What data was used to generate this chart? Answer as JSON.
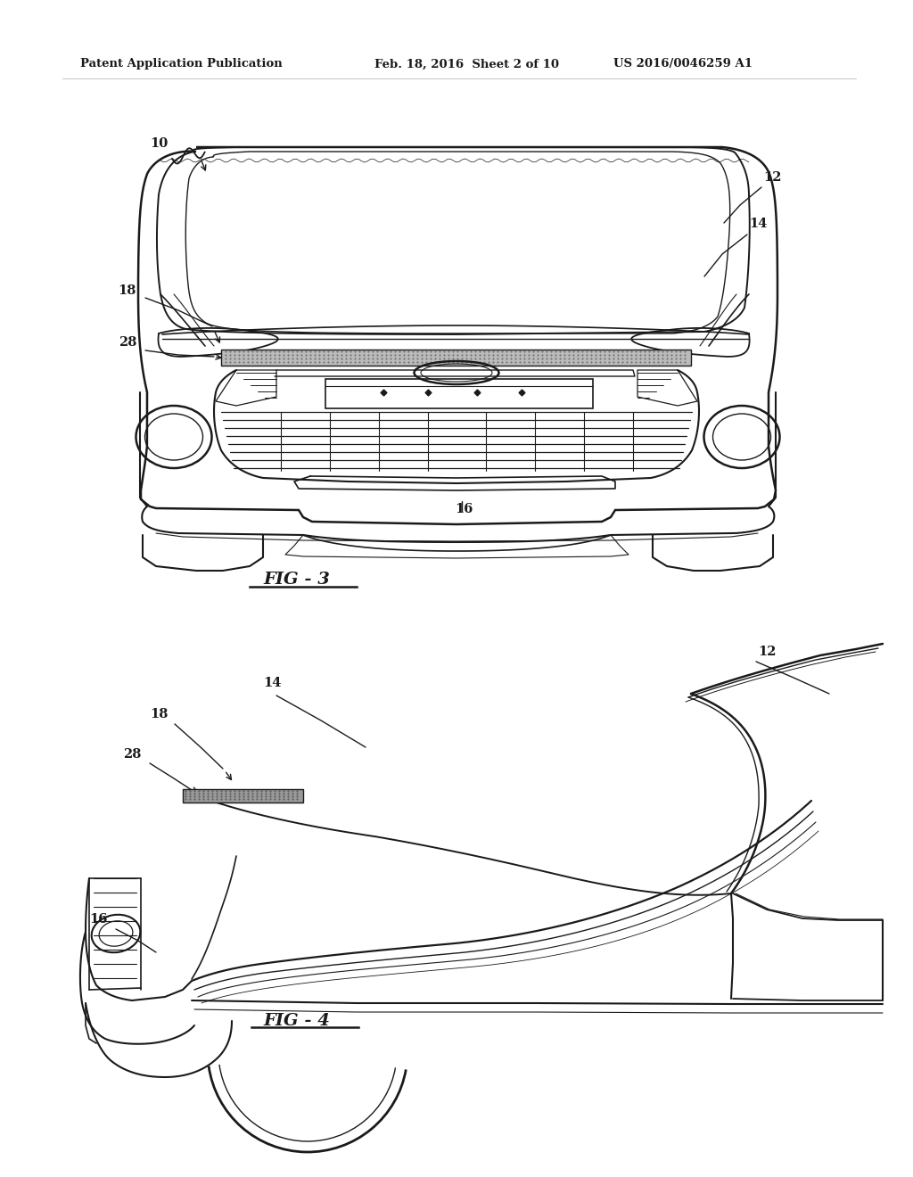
{
  "background_color": "#ffffff",
  "header_text": "Patent Application Publication",
  "header_date": "Feb. 18, 2016  Sheet 2 of 10",
  "header_patent": "US 2016/0046259 A1",
  "fig3_label": "FIG - 3",
  "fig4_label": "FIG - 4",
  "text_color": "#1a1a1a",
  "line_color": "#1a1a1a",
  "lw_main": 1.5,
  "lw_thin": 0.9,
  "lw_inner": 0.7
}
